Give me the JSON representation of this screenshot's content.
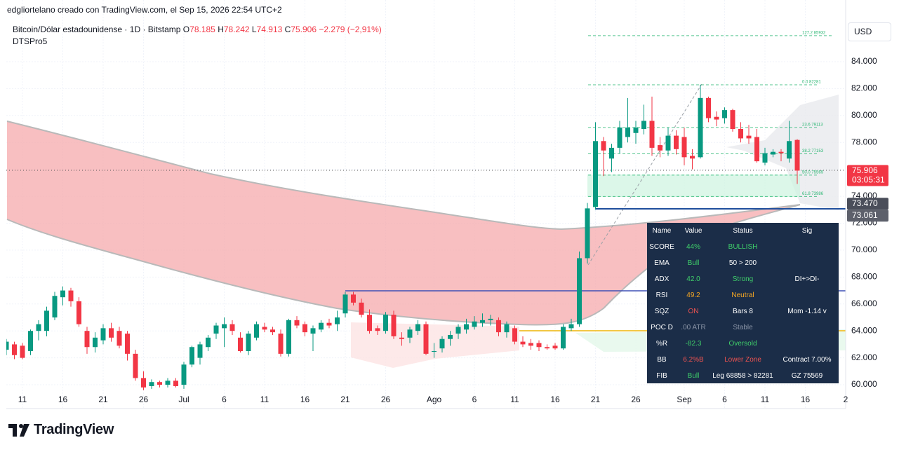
{
  "header": {
    "byline": "edgliortelano creado con TradingView.com, el Sep 15, 2026 22:54 UTC+2",
    "symbol": "Bitcoin/Dólar estadounidense · 1D · Bitstamp",
    "open_key": "O",
    "open": "78.185",
    "high_key": "H",
    "high": "78.242",
    "low_key": "L",
    "low": "74.913",
    "close_key": "C",
    "close": "75.906",
    "change": "−2.279 (−2,91%)",
    "indicator": "DTSPro5",
    "currency": "USD"
  },
  "chart_data": {
    "type": "candlestick",
    "x": [
      "2026-06-09",
      "2026-06-10",
      "2026-06-11",
      "2026-06-12",
      "2026-06-13",
      "2026-06-14",
      "2026-06-15",
      "2026-06-16",
      "2026-06-17",
      "2026-06-18",
      "2026-06-19",
      "2026-06-20",
      "2026-06-21",
      "2026-06-22",
      "2026-06-23",
      "2026-06-24",
      "2026-06-25",
      "2026-06-26",
      "2026-06-27",
      "2026-06-28",
      "2026-06-29",
      "2026-06-30",
      "2026-07-01",
      "2026-07-02",
      "2026-07-03",
      "2026-07-04",
      "2026-07-05",
      "2026-07-06",
      "2026-07-07",
      "2026-07-08",
      "2026-07-09",
      "2026-07-10",
      "2026-07-11",
      "2026-07-12",
      "2026-07-13",
      "2026-07-14",
      "2026-07-15",
      "2026-07-16",
      "2026-07-17",
      "2026-07-18",
      "2026-07-19",
      "2026-07-20",
      "2026-07-21",
      "2026-07-22",
      "2026-07-23",
      "2026-07-24",
      "2026-07-25",
      "2026-07-26",
      "2026-07-27",
      "2026-07-28",
      "2026-07-29",
      "2026-07-30",
      "2026-07-31",
      "2026-08-01",
      "2026-08-02",
      "2026-08-03",
      "2026-08-04",
      "2026-08-05",
      "2026-08-06",
      "2026-08-07",
      "2026-08-08",
      "2026-08-09",
      "2026-08-10",
      "2026-08-11",
      "2026-08-12",
      "2026-08-13",
      "2026-08-14",
      "2026-08-15",
      "2026-08-16",
      "2026-08-17",
      "2026-08-18",
      "2026-08-19",
      "2026-08-20",
      "2026-08-21",
      "2026-08-22",
      "2026-08-23",
      "2026-08-24",
      "2026-08-25",
      "2026-08-26",
      "2026-08-27",
      "2026-08-28",
      "2026-08-29",
      "2026-08-30",
      "2026-08-31",
      "2026-09-01",
      "2026-09-02",
      "2026-09-03",
      "2026-09-04",
      "2026-09-05",
      "2026-09-06",
      "2026-09-07",
      "2026-09-08",
      "2026-09-09",
      "2026-09-10",
      "2026-09-11",
      "2026-09-12",
      "2026-09-13",
      "2026-09-14",
      "2026-09-15"
    ],
    "open": [
      62600,
      63000,
      62900,
      62500,
      64000,
      64000,
      65000,
      66500,
      67000,
      66200,
      64000,
      62800,
      63300,
      64200,
      64000,
      63800,
      62300,
      60500,
      59900,
      60200,
      60000,
      60300,
      60000,
      61500,
      62000,
      62800,
      63800,
      64200,
      64500,
      63500,
      62500,
      63500,
      64300,
      64100,
      63800,
      62300,
      64800,
      64500,
      63800,
      64100,
      64600,
      64500,
      65300,
      66700,
      66100,
      65200,
      64200,
      64000,
      65200,
      63500,
      63500,
      64000,
      64500,
      62500,
      62700,
      63400,
      63800,
      64100,
      64300,
      64600,
      64800,
      64800,
      63900,
      64200,
      63200,
      63100,
      63100,
      62800,
      62900,
      62700,
      64200,
      64500,
      69400,
      73200,
      78100,
      76800,
      77600,
      78400,
      78700,
      79000,
      79600,
      77800,
      77400,
      78500,
      78400,
      77000,
      76900,
      81300,
      79900,
      79800,
      80400,
      79000,
      78500,
      78400,
      76500,
      77100,
      77300,
      76800,
      78185
    ],
    "high": [
      63400,
      63200,
      63100,
      64100,
      64800,
      65800,
      66900,
      67300,
      67200,
      66500,
      64300,
      63900,
      64500,
      64600,
      64300,
      64000,
      62600,
      61000,
      60400,
      60300,
      60500,
      60500,
      61700,
      62900,
      63200,
      63700,
      64600,
      65000,
      64800,
      63900,
      64000,
      64700,
      64600,
      64300,
      64100,
      64900,
      65100,
      64700,
      64400,
      64800,
      64900,
      65500,
      66900,
      66900,
      66400,
      65600,
      64400,
      65400,
      65500,
      63900,
      64300,
      64800,
      64700,
      63100,
      63600,
      64000,
      64500,
      64900,
      65100,
      65300,
      65200,
      65000,
      64700,
      64400,
      63600,
      63400,
      63300,
      63000,
      63100,
      64500,
      64900,
      69900,
      73500,
      79500,
      78400,
      77900,
      79600,
      81300,
      79600,
      80800,
      81400,
      78400,
      79100,
      78900,
      79100,
      77500,
      82300,
      81400,
      80300,
      80600,
      80500,
      79500,
      79300,
      79000,
      77600,
      77500,
      77500,
      79600,
      78242
    ],
    "low": [
      62200,
      61900,
      61900,
      62200,
      63300,
      63600,
      64800,
      65900,
      65800,
      64300,
      62300,
      62400,
      63000,
      63200,
      62700,
      61800,
      60300,
      59600,
      59700,
      59800,
      59800,
      59800,
      59700,
      61300,
      61500,
      62500,
      63400,
      62800,
      63700,
      62400,
      62200,
      63300,
      63900,
      63700,
      62100,
      62100,
      64200,
      63600,
      62500,
      63900,
      64200,
      64000,
      65000,
      65900,
      65000,
      63800,
      63700,
      63800,
      63400,
      62900,
      63100,
      63700,
      62200,
      62000,
      62400,
      62900,
      63400,
      63800,
      64100,
      64300,
      64400,
      63600,
      63500,
      63000,
      62800,
      62600,
      62500,
      62600,
      62600,
      62600,
      64000,
      64300,
      69000,
      73000,
      75500,
      75800,
      77200,
      78000,
      77900,
      78600,
      77000,
      76900,
      77000,
      77100,
      76300,
      76000,
      76800,
      79500,
      79200,
      79400,
      78800,
      78000,
      77900,
      76500,
      76300,
      76900,
      76600,
      76500,
      74913
    ],
    "close": [
      63200,
      62200,
      62000,
      64000,
      64500,
      65500,
      66600,
      67000,
      66200,
      64500,
      62800,
      63500,
      64200,
      63500,
      62900,
      62300,
      60500,
      59800,
      60200,
      60000,
      60300,
      59900,
      61500,
      62800,
      63000,
      63500,
      64400,
      64500,
      64000,
      62500,
      63800,
      64500,
      64100,
      63900,
      62300,
      64800,
      64400,
      63900,
      64200,
      64600,
      64400,
      65000,
      66700,
      66100,
      65200,
      64000,
      64000,
      65200,
      63600,
      63400,
      64100,
      64500,
      62300,
      62500,
      63400,
      63700,
      64300,
      64500,
      64700,
      64800,
      64900,
      63900,
      64500,
      63200,
      63000,
      62900,
      62800,
      62700,
      62700,
      64300,
      64500,
      69400,
      73100,
      78100,
      77400,
      77600,
      79100,
      79100,
      79100,
      79600,
      77600,
      77400,
      78500,
      77500,
      76900,
      76800,
      81300,
      79800,
      79700,
      80400,
      79000,
      78300,
      78300,
      76600,
      77200,
      77300,
      77200,
      78100,
      75906
    ],
    "up_color": "#089981",
    "down_color": "#f23645",
    "xlim": [
      "2026-06-09",
      "2026-09-21"
    ],
    "xticks": [
      {
        "value": "2026-06-11",
        "label": "11"
      },
      {
        "value": "2026-06-16",
        "label": "16"
      },
      {
        "value": "2026-06-21",
        "label": "21"
      },
      {
        "value": "2026-06-26",
        "label": "26"
      },
      {
        "value": "2026-07-01",
        "label": "Jul"
      },
      {
        "value": "2026-07-06",
        "label": "6"
      },
      {
        "value": "2026-07-11",
        "label": "11"
      },
      {
        "value": "2026-07-16",
        "label": "16"
      },
      {
        "value": "2026-07-21",
        "label": "21"
      },
      {
        "value": "2026-07-26",
        "label": "26"
      },
      {
        "value": "2026-08-01",
        "label": "Ago"
      },
      {
        "value": "2026-08-06",
        "label": "6"
      },
      {
        "value": "2026-08-11",
        "label": "11"
      },
      {
        "value": "2026-08-16",
        "label": "16"
      },
      {
        "value": "2026-08-21",
        "label": "21"
      },
      {
        "value": "2026-08-26",
        "label": "26"
      },
      {
        "value": "2026-09-01",
        "label": "Sep"
      },
      {
        "value": "2026-09-06",
        "label": "6"
      },
      {
        "value": "2026-09-11",
        "label": "11"
      },
      {
        "value": "2026-09-16",
        "label": "16"
      },
      {
        "value": "2026-09-21",
        "label": "2"
      }
    ],
    "ylim": [
      59430,
      87120
    ],
    "yticks": [
      {
        "value": 60000,
        "label": "60.000"
      },
      {
        "value": 62000,
        "label": "62.000"
      },
      {
        "value": 64000,
        "label": "64.000"
      },
      {
        "value": 66000,
        "label": "66.000"
      },
      {
        "value": 68000,
        "label": "68.000"
      },
      {
        "value": 70000,
        "label": "70.000"
      },
      {
        "value": 72000,
        "label": "72.000"
      },
      {
        "value": 74000,
        "label": "74.000"
      },
      {
        "value": 76000,
        "label": "76.000"
      },
      {
        "value": 78000,
        "label": "78.000"
      },
      {
        "value": 80000,
        "label": "80.000"
      },
      {
        "value": 82000,
        "label": "82.000"
      },
      {
        "value": 84000,
        "label": "84.000"
      }
    ],
    "grid": true,
    "price_labels": [
      {
        "value": 75906,
        "label": "75.906",
        "countdown": "03:05:31",
        "color": "#f23645"
      },
      {
        "value": 73470,
        "label": "73.470",
        "color": "#4a4e5a"
      },
      {
        "value": 73061,
        "label": "73.061",
        "color": "#5d606b"
      }
    ],
    "fib_levels": [
      {
        "value": 85932,
        "label": "127.2 85932"
      },
      {
        "value": 82281,
        "label": "0.0 82281"
      },
      {
        "value": 79113,
        "label": "23.6 79113"
      },
      {
        "value": 77153,
        "label": "38.2 77153"
      },
      {
        "value": 75569,
        "label": "50.0 75569"
      },
      {
        "value": 73986,
        "label": "61.8 73986"
      }
    ],
    "fib_color": "#2bb673"
  },
  "table": {
    "columns": [
      "Name",
      "Value",
      "Status",
      "Sig"
    ],
    "rows": [
      {
        "name": "SCORE",
        "value": "44%",
        "value_color": "#3fce6a",
        "status": "BULLISH",
        "status_color": "#3fce6a"
      },
      {
        "name": "EMA",
        "value": "Bull",
        "value_color": "#3fce6a",
        "status": "50 > 200",
        "status_color": "#ffffff"
      },
      {
        "name": "ADX",
        "value": "42.0",
        "value_color": "#3fce6a",
        "status": "Strong",
        "status_color": "#3fce6a",
        "sig": "DI+>DI-"
      },
      {
        "name": "RSI",
        "value": "49.2",
        "value_color": "#f5a623",
        "status": "Neutral",
        "status_color": "#f5a623"
      },
      {
        "name": "SQZ",
        "value": "ON",
        "value_color": "#ef5350",
        "status": "Bars 8",
        "status_color": "#ffffff",
        "sig": "Mom -1.14 v"
      },
      {
        "name": "POC D",
        "value": ".00 ATR",
        "value_color": "#8a94a6",
        "status": "Stable",
        "status_color": "#8a94a6"
      },
      {
        "name": "%R",
        "value": "-82.3",
        "value_color": "#3fce6a",
        "status": "Oversold",
        "status_color": "#3fce6a"
      },
      {
        "name": "BB",
        "value": "6.2%B",
        "value_color": "#ef5350",
        "status": "Lower Zone",
        "status_color": "#ef5350",
        "sig": "Contract 7.00%"
      },
      {
        "name": "FIB",
        "value": "Bull",
        "value_color": "#3fce6a",
        "status": "Leg 68858 > 82281",
        "status_color": "#ffffff",
        "sig": "GZ 75569"
      }
    ]
  },
  "footer": {
    "logo": "TradingView"
  }
}
